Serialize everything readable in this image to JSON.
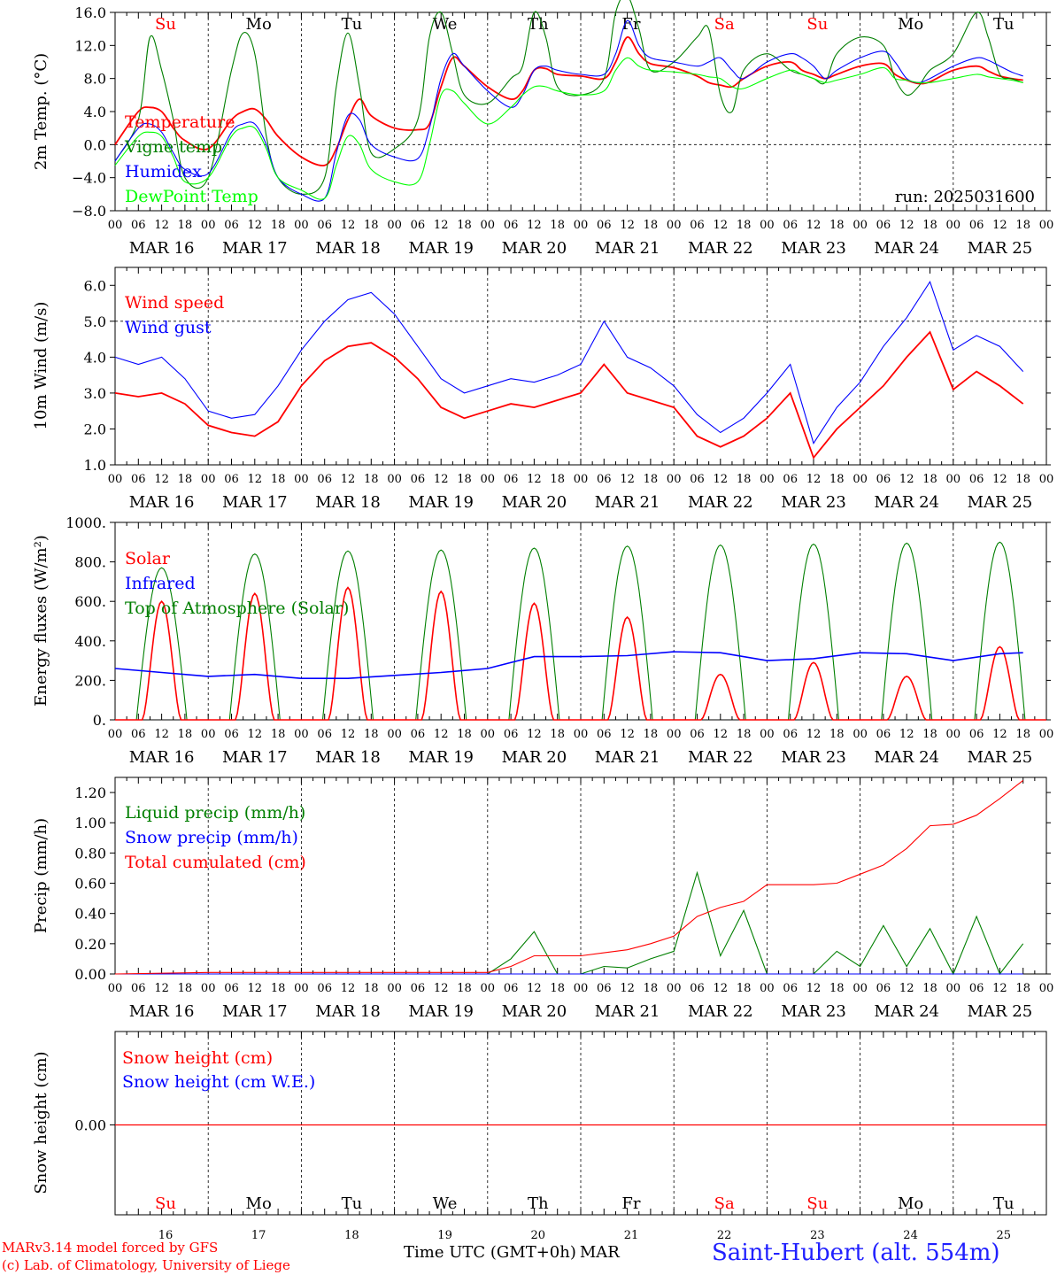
{
  "chart_data": [
    {
      "type": "line",
      "ylabel": "2m Temp. (°C)",
      "ylim": [
        -8,
        16
      ],
      "yticks": [
        "16.0",
        "12.0",
        "8.0",
        "4.0",
        "0.0",
        "−4.0",
        "−8.0"
      ],
      "annotation": "run: 2025031600",
      "x_hours": [
        0,
        6,
        9,
        12,
        15,
        18,
        24,
        30,
        33,
        36,
        39,
        42,
        48,
        54,
        57,
        60,
        63,
        66,
        72,
        78,
        81,
        84,
        87,
        90,
        96,
        102,
        105,
        108,
        111,
        114,
        120,
        126,
        129,
        132,
        135,
        138,
        144,
        150,
        153,
        156,
        159,
        162,
        168,
        174,
        177,
        180,
        183,
        186,
        192,
        198,
        201,
        204,
        207,
        210,
        216,
        222,
        225,
        228,
        231,
        234
      ],
      "series": [
        {
          "name": "Temperature",
          "color": "#ff0000",
          "values": [
            0,
            4,
            4.5,
            4,
            2,
            0.5,
            -0.5,
            3,
            4,
            4.3,
            3,
            1,
            -1.5,
            -2.5,
            -0.5,
            3,
            5.5,
            3.5,
            2,
            1.8,
            2.5,
            7,
            10.5,
            9.5,
            7,
            5.5,
            6.5,
            9,
            9.2,
            8.5,
            8.3,
            8,
            10,
            13,
            11,
            9.8,
            9.3,
            8.3,
            7.5,
            7.2,
            7,
            8,
            9.5,
            10,
            9,
            8.5,
            8,
            8.5,
            9.5,
            9.8,
            8.5,
            7.8,
            7.4,
            7.6,
            9,
            9.5,
            8.9,
            8.3,
            8,
            7.8
          ]
        },
        {
          "name": "Vigne temp",
          "color": "#007f00",
          "values": [
            -2,
            3,
            13,
            9,
            3,
            -4,
            -4,
            9,
            13.5,
            11,
            1,
            -4,
            -6,
            -4,
            7,
            13.5,
            7,
            -1,
            -0.5,
            3,
            13,
            16,
            11,
            6,
            5,
            8,
            9.5,
            16,
            13,
            7,
            6,
            8,
            16,
            18,
            14,
            9,
            10,
            13,
            14,
            6,
            4,
            9,
            11,
            9,
            8.5,
            8,
            7.5,
            11,
            13,
            12,
            8,
            6,
            7,
            9,
            11,
            16,
            13,
            8.5,
            8,
            7.5
          ]
        },
        {
          "name": "Humidex",
          "color": "#0000ff",
          "values": [
            -2,
            2,
            2.5,
            1.5,
            -1,
            -3,
            -3.5,
            1.5,
            2.5,
            2.5,
            0,
            -4,
            -6,
            -6.5,
            -1,
            3.5,
            3,
            0,
            -1.5,
            -1.7,
            2,
            8,
            11,
            9.5,
            6.5,
            4.5,
            6,
            9,
            9.5,
            9,
            8.5,
            8.5,
            11,
            15,
            12,
            10.5,
            10,
            9.5,
            10,
            10.5,
            9,
            8,
            10,
            11,
            10.5,
            9.5,
            8,
            9,
            10.5,
            11.3,
            10,
            8,
            7.5,
            8,
            9.5,
            10.5,
            10.2,
            9.5,
            8.8,
            8.3
          ]
        },
        {
          "name": "DewPoint Temp",
          "color": "#00ff00",
          "values": [
            -2.5,
            1,
            1.5,
            1,
            -1.5,
            -4.5,
            -4,
            1,
            2,
            2,
            -0.5,
            -4,
            -5.5,
            -6.5,
            -2.5,
            1,
            0,
            -3,
            -4.5,
            -4.5,
            0,
            6,
            6.5,
            5,
            2.5,
            4.5,
            6,
            7,
            7,
            6.5,
            6,
            6.5,
            9,
            10.5,
            9.5,
            9,
            8.8,
            8.5,
            8.2,
            8,
            7,
            6.8,
            8,
            9,
            8.5,
            8,
            7.5,
            7.8,
            8.5,
            9.3,
            8,
            7.8,
            7.5,
            7.5,
            8,
            8.5,
            8.2,
            8,
            7.8,
            7.5
          ]
        }
      ]
    },
    {
      "type": "line",
      "ylabel": "10m Wind (m/s)",
      "ylim": [
        1,
        6.5
      ],
      "yticks": [
        "6.0",
        "5.0",
        "4.0",
        "3.0",
        "2.0",
        "1.0"
      ],
      "x_hours": [
        0,
        6,
        12,
        18,
        24,
        30,
        36,
        42,
        48,
        54,
        60,
        66,
        72,
        78,
        84,
        90,
        96,
        102,
        108,
        114,
        120,
        126,
        132,
        138,
        144,
        150,
        156,
        162,
        168,
        174,
        180,
        186,
        192,
        198,
        204,
        210,
        216,
        222,
        228,
        234
      ],
      "series": [
        {
          "name": "Wind speed",
          "color": "#ff0000",
          "values": [
            3.0,
            2.9,
            3.0,
            2.7,
            2.1,
            1.9,
            1.8,
            2.2,
            3.2,
            3.9,
            4.3,
            4.4,
            4.0,
            3.4,
            2.6,
            2.3,
            2.5,
            2.7,
            2.6,
            2.8,
            3.0,
            3.8,
            3.0,
            2.8,
            2.6,
            1.8,
            1.5,
            1.8,
            2.3,
            3.0,
            1.2,
            2.0,
            2.6,
            3.2,
            4.0,
            4.7,
            3.1,
            3.6,
            3.2,
            2.7
          ]
        },
        {
          "name": "Wind gust",
          "color": "#0000ff",
          "values": [
            4.0,
            3.8,
            4.0,
            3.4,
            2.5,
            2.3,
            2.4,
            3.2,
            4.2,
            5.0,
            5.6,
            5.8,
            5.2,
            4.3,
            3.4,
            3.0,
            3.2,
            3.4,
            3.3,
            3.5,
            3.8,
            5.0,
            4.0,
            3.7,
            3.2,
            2.4,
            1.9,
            2.3,
            3.0,
            3.8,
            1.6,
            2.6,
            3.3,
            4.3,
            5.1,
            6.1,
            4.2,
            4.6,
            4.3,
            3.6
          ]
        }
      ]
    },
    {
      "type": "line",
      "ylabel": "Energy fluxes (W/m²)",
      "ylim": [
        0,
        1000
      ],
      "yticks": [
        "1000.",
        "800.",
        "600.",
        "400.",
        "200.",
        "0."
      ],
      "series": [
        {
          "name": "Solar",
          "color": "#ff0000",
          "daily_peak": [
            600,
            640,
            670,
            650,
            590,
            520,
            230,
            290,
            220,
            370
          ]
        },
        {
          "name": "Infrared",
          "color": "#0000ff",
          "x_hours": [
            0,
            12,
            24,
            36,
            48,
            60,
            72,
            84,
            96,
            108,
            120,
            132,
            144,
            156,
            168,
            180,
            192,
            204,
            216,
            228,
            234
          ],
          "values": [
            260,
            240,
            220,
            230,
            210,
            210,
            225,
            240,
            260,
            320,
            320,
            325,
            345,
            340,
            300,
            310,
            340,
            335,
            300,
            335,
            340
          ]
        },
        {
          "name": "Top of Atmosphere (Solar)",
          "color": "#007f00",
          "daily_peak": [
            770,
            840,
            855,
            860,
            870,
            880,
            885,
            890,
            895,
            900
          ]
        }
      ]
    },
    {
      "type": "line",
      "ylabel": "Precip (mm/h)",
      "ylim": [
        0,
        1.3
      ],
      "yticks": [
        "1.20",
        "1.00",
        "0.80",
        "0.60",
        "0.40",
        "0.20",
        "0.00"
      ],
      "x_hours": [
        0,
        24,
        48,
        72,
        96,
        102,
        108,
        114,
        120,
        126,
        132,
        138,
        144,
        150,
        156,
        162,
        168,
        174,
        180,
        186,
        192,
        198,
        204,
        210,
        216,
        222,
        228,
        234
      ],
      "series": [
        {
          "name": "Liquid precip (mm/h)",
          "color": "#007f00",
          "values": [
            0,
            0,
            0,
            0,
            0,
            0.1,
            0.28,
            0,
            0,
            0.05,
            0.04,
            0.1,
            0.15,
            0.67,
            0.12,
            0.42,
            0,
            0,
            0,
            0.15,
            0.05,
            0.32,
            0.05,
            0.3,
            0,
            0.38,
            0,
            0.2
          ]
        },
        {
          "name": "Snow precip (mm/h)",
          "color": "#0000ff",
          "values": [
            0,
            0,
            0,
            0,
            0,
            0,
            0,
            0,
            0,
            0,
            0,
            0,
            0,
            0,
            0,
            0,
            0,
            0,
            0,
            0,
            0,
            0,
            0,
            0,
            0,
            0,
            0,
            0
          ]
        },
        {
          "name": "Total cumulated (cm)",
          "color": "#ff0000",
          "values": [
            0,
            0.01,
            0.01,
            0.01,
            0.01,
            0.05,
            0.12,
            0.12,
            0.12,
            0.14,
            0.16,
            0.2,
            0.25,
            0.38,
            0.44,
            0.48,
            0.59,
            0.59,
            0.59,
            0.6,
            0.66,
            0.72,
            0.83,
            0.98,
            0.99,
            1.05,
            1.16,
            1.28
          ]
        }
      ]
    },
    {
      "type": "line",
      "ylabel": "Snow height (cm)",
      "yticks": [
        "0.00"
      ],
      "series": [
        {
          "name": "Snow height (cm)",
          "color": "#ff0000",
          "values": [
            0,
            0
          ]
        },
        {
          "name": "Snow height (cm W.E.)",
          "color": "#0000ff",
          "values": [
            0,
            0
          ]
        }
      ]
    }
  ],
  "x_axis": {
    "hour_ticks": [
      "00",
      "06",
      "12",
      "18"
    ],
    "date_labels": [
      "MAR 16",
      "MAR 17",
      "MAR 18",
      "MAR 19",
      "MAR 20",
      "MAR 21",
      "MAR 22",
      "MAR 23",
      "MAR 24",
      "MAR 25"
    ],
    "day_names": [
      "Su",
      "Mo",
      "Tu",
      "We",
      "Th",
      "Fr",
      "Sa",
      "Su",
      "Mo",
      "Tu"
    ],
    "day_name_colors": [
      "#ff0000",
      "#000000",
      "#000000",
      "#000000",
      "#000000",
      "#000000",
      "#ff0000",
      "#ff0000",
      "#000000",
      "#000000"
    ],
    "day_numbers": [
      "16",
      "17",
      "18",
      "19",
      "20",
      "21",
      "22",
      "23",
      "24",
      "25"
    ],
    "bottom_title": "Time UTC (GMT+0h)",
    "month": "MAR"
  },
  "footer": {
    "model_line1": "MARv3.14 model forced by GFS",
    "model_line2": "(c) Lab. of Climatology, University of Liege",
    "station": "Saint-Hubert (alt. 554m)"
  },
  "colors": {
    "red": "#ff0000",
    "blue": "#0000ff",
    "green": "#007f00",
    "lightgreen": "#00ff00"
  }
}
